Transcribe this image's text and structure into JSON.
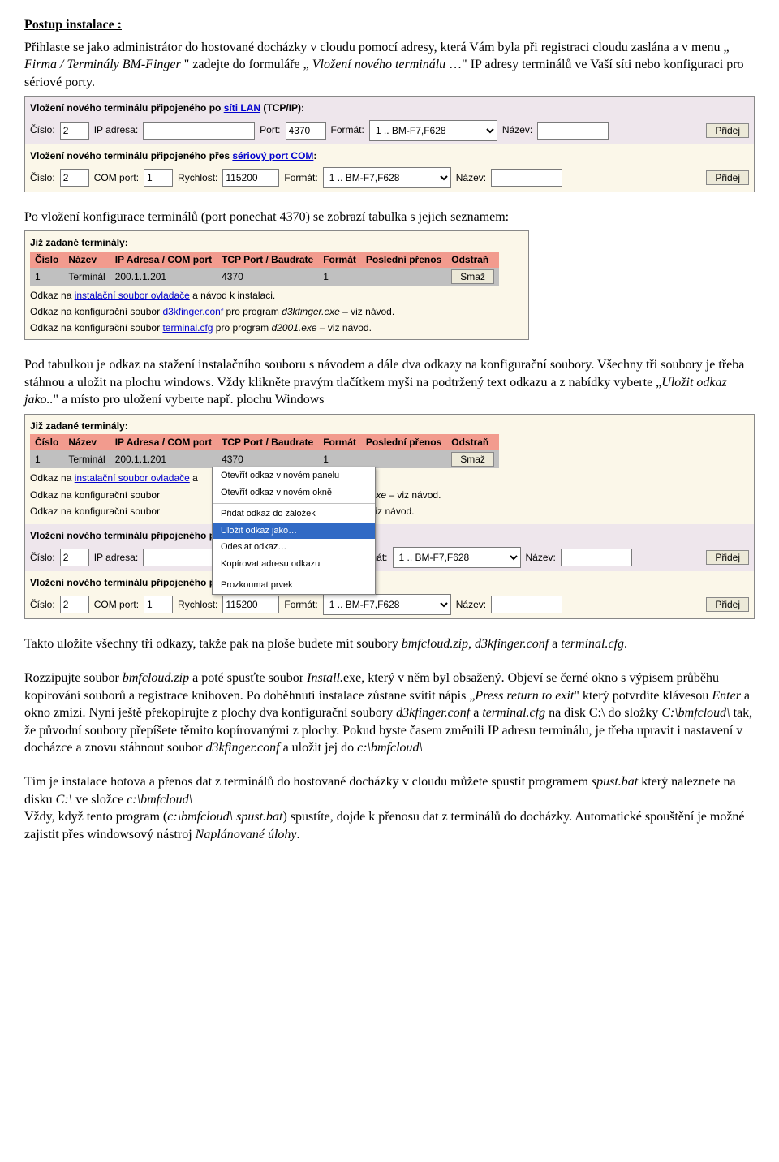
{
  "title": "Postup instalace :",
  "intro_lines": [
    "Přihlaste se jako administrátor do hostované docházky v cloudu pomocí adresy, která Vám byla při registraci cloudu zaslána a v menu „",
    "Firma / Terminály BM-Finger",
    "\" zadejte do formuláře „",
    "Vložení nového terminálu",
    "…\" IP adresy terminálů ve Vaší síti nebo konfiguraci pro sériové porty."
  ],
  "panel1": {
    "lan_heading_pre": "Vložení nového terminálu připojeného po ",
    "lan_heading_link": "síti LAN",
    "lan_heading_post": " (TCP/IP):",
    "cislo_label": "Číslo:",
    "cislo_val": "2",
    "ip_label": "IP adresa:",
    "ip_val": "",
    "port_label": "Port:",
    "port_val": "4370",
    "format_label": "Formát:",
    "format_val": "1 .. BM-F7,F628",
    "nazev_label": "Název:",
    "nazev_val": "",
    "btn": "Přidej",
    "com_heading_pre": "Vložení nového terminálu připojeného přes ",
    "com_heading_link": "sériový port COM",
    "com_heading_post": ":",
    "com_cislo_val": "2",
    "comport_label": "COM port:",
    "comport_val": "1",
    "rychlost_label": "Rychlost:",
    "rychlost_val": "115200"
  },
  "after_panel1": "Po vložení konfigurace terminálů (port ponechat 4370) se zobrazí tabulka s jejich seznamem:",
  "table": {
    "heading": "Již zadané terminály:",
    "cols": [
      "Číslo",
      "Název",
      "IP Adresa / COM port",
      "TCP Port / Baudrate",
      "Formát",
      "Poslední přenos",
      "Odstraň"
    ],
    "row": [
      "1",
      "Terminál",
      "200.1.1.201",
      "4370",
      "1",
      "",
      "Smaž"
    ],
    "notes_pre1": "Odkaz na ",
    "notes_link1": "instalační soubor ovladače",
    "notes_post1": " a návod k instalaci.",
    "notes_pre2": "Odkaz na konfigurační soubor ",
    "notes_link2": "d3kfinger.conf",
    "notes_mid2": " pro program ",
    "notes_it2": "d3kfinger.exe",
    "notes_post2": " – viz návod.",
    "notes_pre3": "Odkaz na konfigurační soubor ",
    "notes_link3": "terminal.cfg",
    "notes_mid3": " pro program ",
    "notes_it3": "d2001.exe",
    "notes_post3": " – viz návod."
  },
  "mid_para": {
    "l1": "Pod tabulkou je odkaz na stažení instalačního souboru s návodem a dále dva odkazy na konfigurační soubory. Všechny tři soubory je třeba stáhnou a uložit na plochu windows. Vždy klikněte pravým tlačítkem myši na podtržený text odkazu a z nabídky vyberte „",
    "l1_it": "Uložit odkaz jako..",
    "l1_post": "\" a místo pro uložení vyberte např. plochu Windows"
  },
  "notes2_post1": " a",
  "notes2_tail1": "finger.exe",
  "notes2_tail1b": " – viz návod.",
  "notes2_tail2": "exe",
  "notes2_tail2b": " – viz návod.",
  "context_menu": {
    "items": [
      "Otevřít odkaz v novém panelu",
      "Otevřít odkaz v novém okně",
      "",
      "Přidat odkaz do záložek",
      "Uložit odkaz jako…",
      "Odeslat odkaz…",
      "Kopírovat adresu odkazu",
      "",
      "Prozkoumat prvek"
    ],
    "selected_index": 4
  },
  "after_overlay": {
    "p1a": "Takto uložíte všechny tři odkazy, takže pak na ploše budete mít soubory ",
    "p1_it1": "bmfcloud.zip, d3kfinger.conf",
    "p1_mid": " a ",
    "p1_it2": "terminal.cfg",
    "p1_end": ".",
    "p2a": "Rozzipujte soubor ",
    "p2_it1": "bmfcloud.zip",
    "p2b": " a poté spusťte soubor ",
    "p2_it2": "Install.",
    "p2c": "exe, který v něm byl obsažený. Objeví se černé okno s výpisem průběhu kopírování souborů a registrace knihoven. Po doběhnutí instalace zůstane svítit nápis „",
    "p2_it3": "Press return to exit",
    "p2d": "\" který potvrdíte klávesou ",
    "p2_it4": "Enter",
    "p2e": " a okno zmizí. Nyní ještě překopírujte z plochy dva konfigurační soubory ",
    "p2_it5": "d3kfinger.conf",
    "p2f": " a ",
    "p2_it6": "terminal.cfg",
    "p2g": " na disk C:\\ do složky ",
    "p2_it7": "C:\\bmfcloud\\",
    "p2h": " tak, že původní soubory přepíšete těmito kopírovanými z plochy. Pokud byste časem změnili IP adresu terminálu, je třeba upravit i nastavení v docházce a znovu stáhnout soubor ",
    "p2_it8": "d3kfinger.conf",
    "p2i": " a uložit jej do ",
    "p2_it9": "c:\\bmfcloud\\",
    "p3a": "Tím je instalace hotova a přenos dat z terminálů do hostované docházky v cloudu můžete spustit programem ",
    "p3_it1": "spust.bat",
    "p3b": " který naleznete na disku ",
    "p3_it2": "C:\\",
    "p3c": " ve složce ",
    "p3_it3": "c:\\bmfcloud\\",
    "p3d": "Vždy, když tento program (",
    "p3_it4": "c:\\bmfcloud\\ spust.bat",
    "p3e": ") spustíte, dojde k přenosu dat z terminálů do docházky. Automatické spouštění je možné zajistit přes windowsový nástroj ",
    "p3_it5": "Naplánované úlohy",
    "p3f": "."
  },
  "widths": {
    "cislo": "28px",
    "ip": "130px",
    "port": "42px",
    "format": "150px",
    "nazev": "80px",
    "comport": "28px",
    "rychlost": "62px"
  }
}
